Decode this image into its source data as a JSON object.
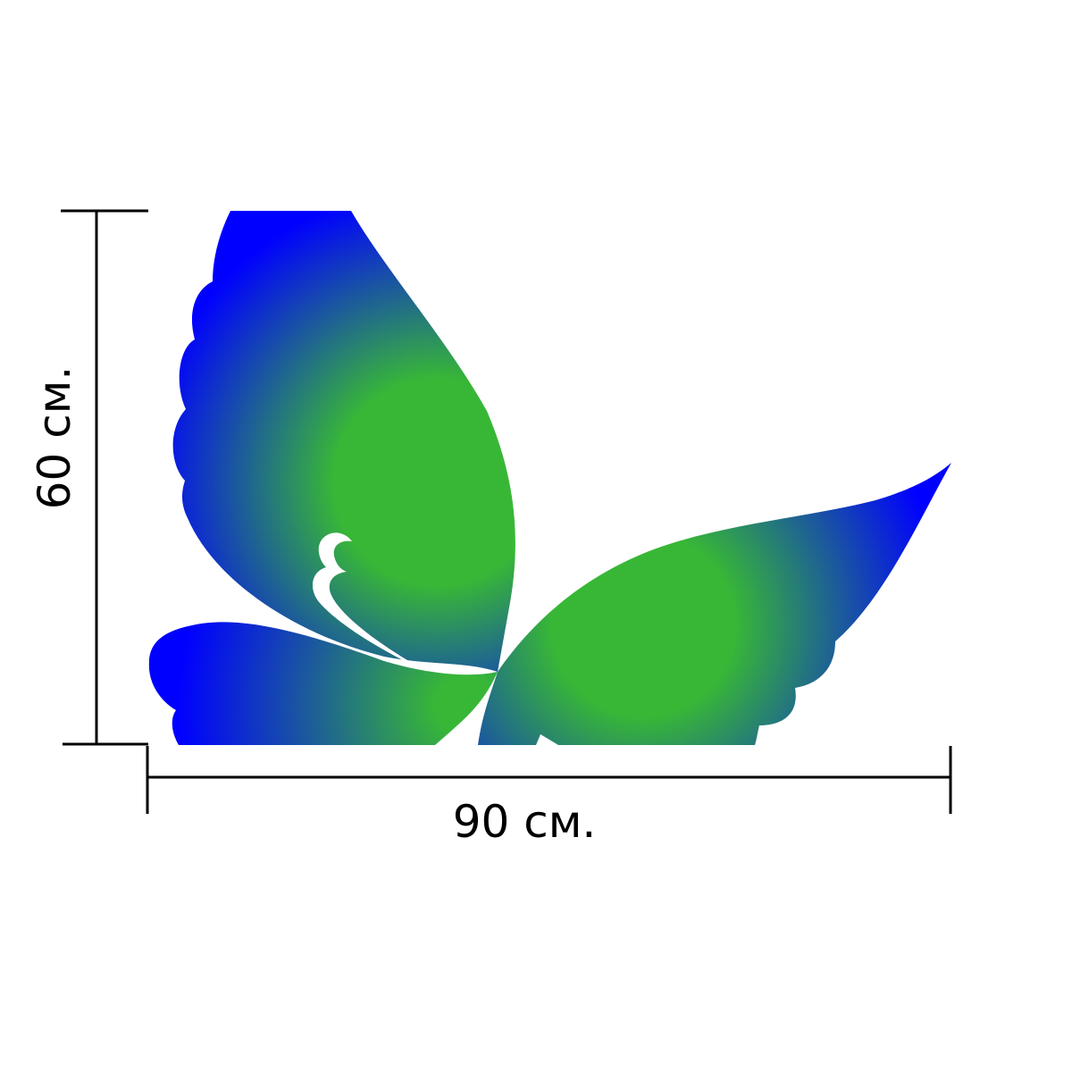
{
  "dimensions": {
    "width_label": "90 см.",
    "height_label": "60 см."
  },
  "colors": {
    "wing_center": "#38b736",
    "wing_edge": "#0000ff",
    "dimension_lines": "#000000",
    "background": "#ffffff"
  },
  "figure": {
    "subject": "butterfly-silhouette"
  }
}
